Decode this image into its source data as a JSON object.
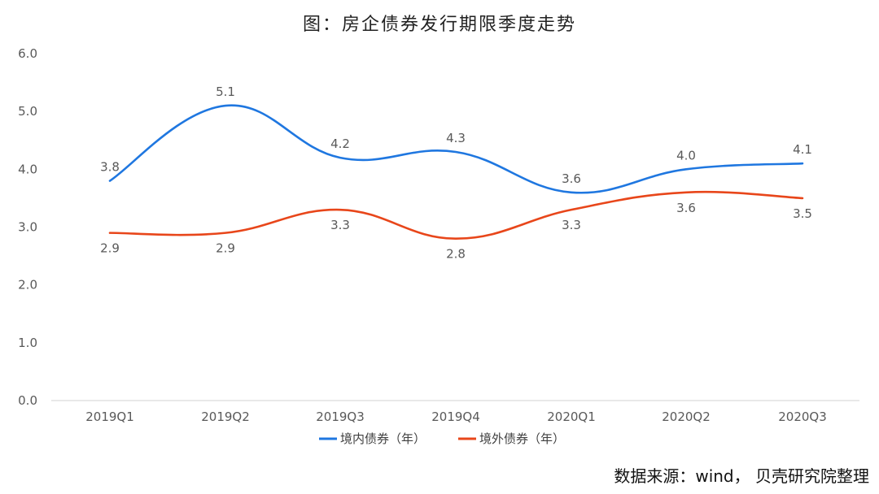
{
  "chart_data": {
    "type": "line",
    "title": "图：房企债券发行期限季度走势",
    "categories": [
      "2019Q1",
      "2019Q2",
      "2019Q3",
      "2019Q4",
      "2020Q1",
      "2020Q2",
      "2020Q3"
    ],
    "series": [
      {
        "name": "境内债券（年）",
        "values": [
          3.8,
          5.1,
          4.2,
          4.3,
          3.6,
          4.0,
          4.1
        ],
        "color": "#1f77e0"
      },
      {
        "name": "境外债券（年）",
        "values": [
          2.9,
          2.9,
          3.3,
          2.8,
          3.3,
          3.6,
          3.5
        ],
        "color": "#e8461a"
      }
    ],
    "ylim": [
      0,
      6
    ],
    "yticks": [
      "0.0",
      "1.0",
      "2.0",
      "3.0",
      "4.0",
      "5.0",
      "6.0"
    ],
    "grid": false,
    "legend_position": "bottom",
    "smooth": true
  },
  "source": "数据来源：wind， 贝壳研究院整理"
}
